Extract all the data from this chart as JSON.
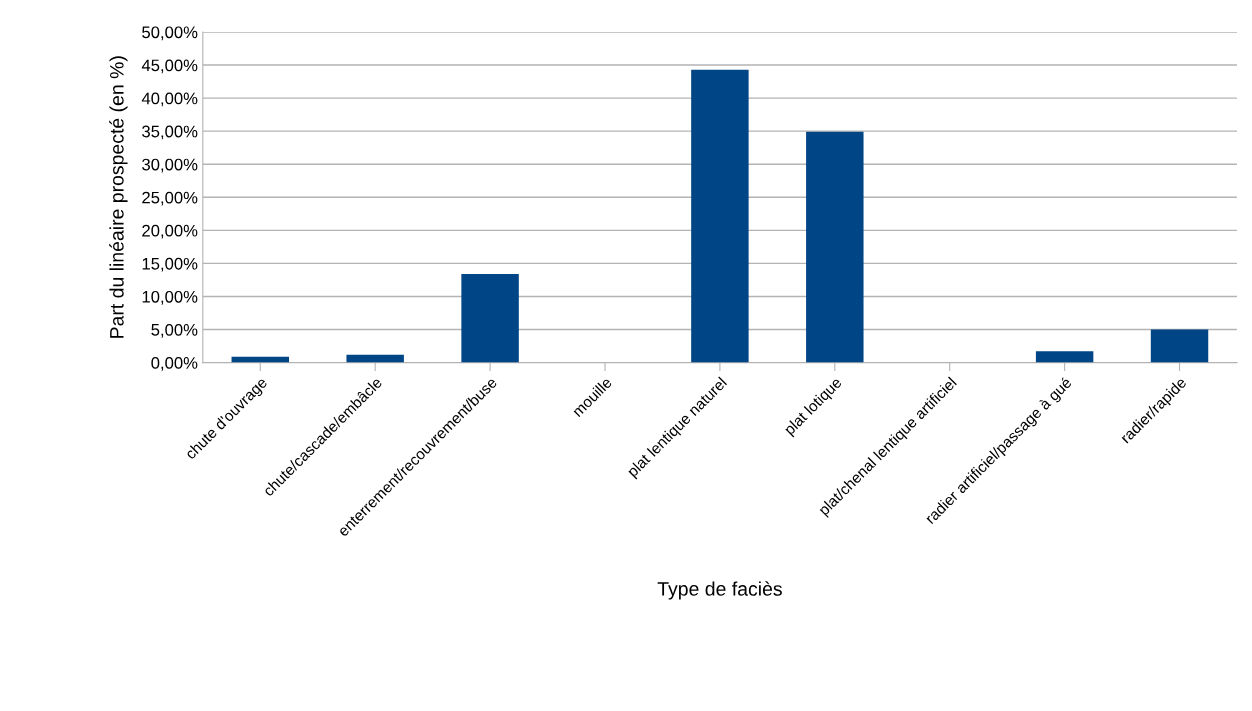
{
  "chart_data": {
    "type": "bar",
    "xlabel": "Type de faciès",
    "ylabel": "Part du linéaire prospecté (en %)",
    "categories": [
      "chute d'ouvrage",
      "chute/cascade/embâcle",
      "enterrement/recouvrement/buse",
      "mouille",
      "plat lentique naturel",
      "plat lotique",
      "plat/chenal lentique artificiel",
      "radier artificiel/passage à gué",
      "radier/rapide"
    ],
    "values": [
      0.9,
      1.2,
      13.4,
      0,
      44.3,
      34.9,
      0,
      1.7,
      5.0
    ],
    "color": "#004586",
    "ylim": [
      0,
      50
    ],
    "yticks": [
      {
        "value": 0,
        "label": "0,00%"
      },
      {
        "value": 5,
        "label": "5,00%"
      },
      {
        "value": 10,
        "label": "10,00%"
      },
      {
        "value": 15,
        "label": "15,00%"
      },
      {
        "value": 20,
        "label": "20,00%"
      },
      {
        "value": 25,
        "label": "25,00%"
      },
      {
        "value": 30,
        "label": "30,00%"
      },
      {
        "value": 35,
        "label": "35,00%"
      },
      {
        "value": 40,
        "label": "40,00%"
      },
      {
        "value": 45,
        "label": "45,00%"
      },
      {
        "value": 50,
        "label": "50,00%"
      }
    ],
    "grid": "y"
  }
}
